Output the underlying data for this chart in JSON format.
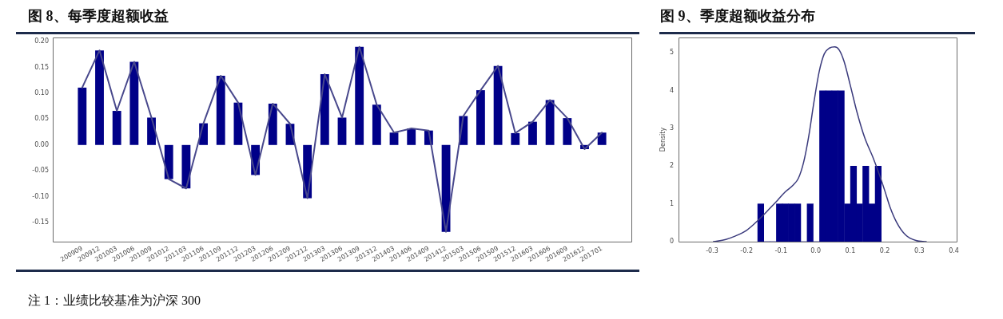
{
  "chart_data": [
    {
      "type": "bar",
      "title": "图 8、每季度超额收益",
      "categories": [
        "200909",
        "200912",
        "201003",
        "201006",
        "201009",
        "201012",
        "201103",
        "201106",
        "201109",
        "201112",
        "201203",
        "201206",
        "201209",
        "201212",
        "201303",
        "201306",
        "201309",
        "201312",
        "201403",
        "201406",
        "201409",
        "201412",
        "201503",
        "201506",
        "201509",
        "201512",
        "201603",
        "201606",
        "201609",
        "201612",
        "201701"
      ],
      "series": [
        {
          "color": "#000088",
          "values": [
            0.111,
            0.183,
            0.066,
            0.161,
            0.053,
            -0.066,
            -0.084,
            0.042,
            0.134,
            0.082,
            -0.058,
            0.08,
            0.041,
            -0.103,
            0.137,
            0.053,
            0.19,
            0.078,
            0.024,
            0.032,
            0.028,
            -0.168,
            0.056,
            0.106,
            0.153,
            0.023,
            0.045,
            0.087,
            0.052,
            -0.008,
            0.024
          ]
        },
        {
          "type": "line",
          "color": "#48488c",
          "values": [
            0.111,
            0.183,
            0.066,
            0.161,
            0.053,
            -0.066,
            -0.084,
            0.042,
            0.134,
            0.082,
            -0.058,
            0.08,
            0.041,
            -0.103,
            0.137,
            0.053,
            0.19,
            0.078,
            0.024,
            0.032,
            0.028,
            -0.168,
            0.056,
            0.106,
            0.153,
            0.023,
            0.045,
            0.087,
            0.052,
            -0.008,
            0.024
          ]
        }
      ],
      "ylim": [
        -0.187,
        0.208
      ],
      "yticks": [
        {
          "value": -0.15,
          "label": "-0.15"
        },
        {
          "value": -0.1,
          "label": "-0.10"
        },
        {
          "value": -0.05,
          "label": "-0.05"
        },
        {
          "value": 0,
          "label": "0.00"
        },
        {
          "value": 0.05,
          "label": "0.05"
        },
        {
          "value": 0.1,
          "label": "0.10"
        },
        {
          "value": 0.15,
          "label": "0.15"
        },
        {
          "value": 0.2,
          "label": "0.20"
        }
      ],
      "annotations": [
        "注 1：业绩比较基准为沪深 300"
      ]
    },
    {
      "type": "histogram",
      "title": "图 9、季度超额收益分布",
      "ylabel": "Density",
      "bins": [
        -0.168,
        -0.15,
        -0.132,
        -0.114,
        -0.096,
        -0.079,
        -0.061,
        -0.043,
        -0.025,
        -0.007,
        0.011,
        0.029,
        0.047,
        0.065,
        0.083,
        0.101,
        0.118,
        0.136,
        0.154,
        0.172,
        0.19
      ],
      "series": [
        {
          "color": "#000088",
          "values": [
            1,
            0,
            0,
            1,
            1,
            1,
            1,
            0,
            1,
            0,
            4,
            4,
            4,
            4,
            1,
            2,
            1,
            2,
            1,
            2
          ]
        },
        {
          "type": "line",
          "color": "#3a3a7c",
          "x": [
            -0.296,
            -0.26,
            -0.235,
            -0.2,
            -0.165,
            -0.135,
            -0.11,
            -0.088,
            -0.065,
            -0.05,
            -0.035,
            -0.02,
            -0.005,
            0.01,
            0.025,
            0.04,
            0.055,
            0.068,
            0.082,
            0.1,
            0.119,
            0.142,
            0.165,
            0.185,
            0.2,
            0.215,
            0.235,
            0.26,
            0.29,
            0.32
          ],
          "values": [
            0,
            0.06,
            0.14,
            0.3,
            0.58,
            0.86,
            1.1,
            1.32,
            1.5,
            1.68,
            2.1,
            2.8,
            3.7,
            4.5,
            4.98,
            5.13,
            5.16,
            5.08,
            4.78,
            4.15,
            3.45,
            2.75,
            2.25,
            1.76,
            1.35,
            0.92,
            0.5,
            0.18,
            0.03,
            0
          ]
        }
      ],
      "xlim": [
        -0.397,
        0.408
      ],
      "xticks": [
        -0.3,
        -0.2,
        -0.1,
        {
          "value": 0,
          "label": "0.0"
        },
        0.1,
        0.2,
        0.3,
        0.4
      ],
      "ylim": [
        0,
        5.41
      ],
      "yticks": [
        0,
        1,
        2,
        3,
        4,
        5
      ]
    }
  ]
}
